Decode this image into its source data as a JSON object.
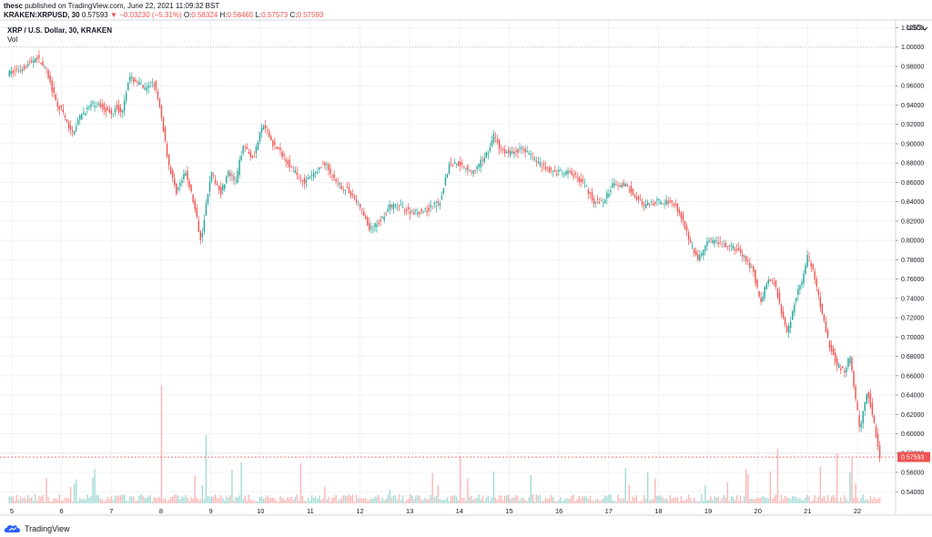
{
  "header": {
    "user": "thesc",
    "published": "published on TradingView.com, June 22, 2021 11:09:32 BST"
  },
  "ohlc": {
    "symbol": "KRAKEN:XRPUSD, 30",
    "last": "0.57593",
    "change": "▼ −0.03230 (−5.31%)",
    "o_label": "O:",
    "o": "0.58324",
    "h_label": "H:",
    "h": "0.58465",
    "l_label": "L:",
    "l": "0.57573",
    "c_label": "C:",
    "c": "0.57593"
  },
  "pane": {
    "title": "XRP / U.S. Dollar, 30, KRAKEN",
    "vol_label": "Vol",
    "currency": "USD"
  },
  "brand": {
    "name": "TradingView"
  },
  "colors": {
    "up": "#26a69a",
    "down": "#ef5350",
    "vol_up": "#a6dbd5",
    "vol_down": "#f8b9b7",
    "grid": "#f0f3fa",
    "last_price_bg": "#ef5350"
  },
  "price_tag": "0.57593",
  "chart_data": {
    "type": "candlestick",
    "title": "XRP / U.S. Dollar, 30, KRAKEN",
    "x_ticks": [
      "5",
      "6",
      "7",
      "8",
      "9",
      "10",
      "11",
      "12",
      "13",
      "14",
      "15",
      "16",
      "17",
      "18",
      "19",
      "20",
      "21",
      "22"
    ],
    "y_ticks": [
      "1.02000",
      "1.00000",
      "0.98000",
      "0.96000",
      "0.94000",
      "0.92000",
      "0.90000",
      "0.88000",
      "0.86000",
      "0.84000",
      "0.82000",
      "0.80000",
      "0.78000",
      "0.76000",
      "0.74000",
      "0.72000",
      "0.70000",
      "0.68000",
      "0.66000",
      "0.64000",
      "0.62000",
      "0.60000",
      "0.58000",
      "0.56000",
      "0.54000"
    ],
    "ylim": [
      0.528,
      1.028
    ],
    "grid": true,
    "price_path": {
      "day": [
        4.95,
        5.2,
        5.4,
        5.5,
        5.7,
        5.9,
        6.0,
        6.2,
        6.4,
        6.6,
        6.8,
        7.0,
        7.1,
        7.2,
        7.35,
        7.5,
        7.7,
        7.85,
        8.0,
        8.15,
        8.3,
        8.5,
        8.65,
        8.8,
        9.0,
        9.2,
        9.35,
        9.5,
        9.65,
        9.85,
        10.05,
        10.25,
        10.5,
        10.7,
        10.9,
        11.1,
        11.3,
        11.5,
        11.8,
        12.0,
        12.2,
        12.4,
        12.6,
        12.8,
        13.0,
        13.3,
        13.6,
        13.8,
        14.0,
        14.3,
        14.6,
        14.7,
        14.8,
        15.0,
        15.3,
        15.6,
        15.9,
        16.2,
        16.5,
        16.7,
        16.9,
        17.1,
        17.4,
        17.7,
        18.0,
        18.3,
        18.5,
        18.65,
        18.8,
        19.0,
        19.3,
        19.6,
        19.9,
        20.05,
        20.2,
        20.35,
        20.5,
        20.6,
        20.75,
        20.9,
        21.0,
        21.15,
        21.3,
        21.45,
        21.6,
        21.75,
        21.85,
        21.95,
        22.05,
        22.2,
        22.32,
        22.45
      ],
      "price": [
        0.973,
        0.978,
        0.985,
        0.99,
        0.975,
        0.94,
        0.935,
        0.91,
        0.93,
        0.94,
        0.94,
        0.93,
        0.94,
        0.93,
        0.968,
        0.965,
        0.955,
        0.965,
        0.93,
        0.88,
        0.85,
        0.87,
        0.84,
        0.8,
        0.87,
        0.85,
        0.87,
        0.86,
        0.9,
        0.885,
        0.92,
        0.9,
        0.885,
        0.87,
        0.86,
        0.87,
        0.88,
        0.86,
        0.85,
        0.835,
        0.81,
        0.82,
        0.835,
        0.835,
        0.83,
        0.83,
        0.84,
        0.88,
        0.88,
        0.87,
        0.895,
        0.91,
        0.895,
        0.89,
        0.895,
        0.88,
        0.87,
        0.87,
        0.86,
        0.84,
        0.84,
        0.86,
        0.855,
        0.835,
        0.84,
        0.84,
        0.82,
        0.795,
        0.78,
        0.8,
        0.795,
        0.79,
        0.77,
        0.735,
        0.76,
        0.755,
        0.72,
        0.705,
        0.74,
        0.76,
        0.785,
        0.76,
        0.72,
        0.69,
        0.67,
        0.665,
        0.68,
        0.64,
        0.605,
        0.645,
        0.615,
        0.576
      ]
    },
    "last_price": 0.57593,
    "reference_line": 1.0,
    "volume": "shown as bars along the bottom of the pane, no scale printed"
  }
}
